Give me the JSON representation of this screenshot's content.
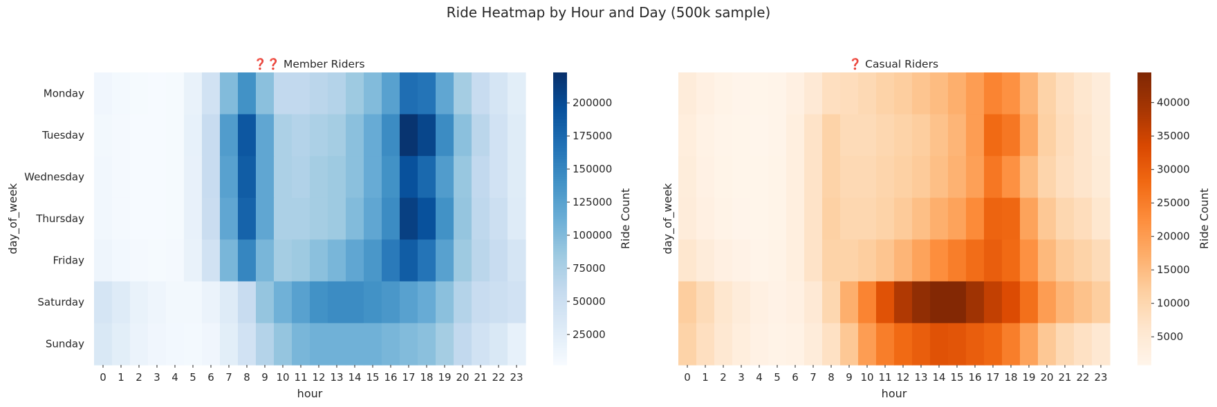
{
  "figure": {
    "title": "Ride Heatmap by Hour and Day (500k sample)"
  },
  "chart_data": [
    {
      "type": "heatmap",
      "title": "❓❓ Member Riders",
      "xlabel": "hour",
      "ylabel": "day_of_week",
      "x": [
        "0",
        "1",
        "2",
        "3",
        "4",
        "5",
        "6",
        "7",
        "8",
        "9",
        "10",
        "11",
        "12",
        "13",
        "14",
        "15",
        "16",
        "17",
        "18",
        "19",
        "20",
        "21",
        "22",
        "23"
      ],
      "y": [
        "Monday",
        "Tuesday",
        "Wednesday",
        "Thursday",
        "Friday",
        "Saturday",
        "Sunday"
      ],
      "colormap": "Blues",
      "colors": {
        "low": "#f7fbff",
        "high": "#08306b"
      },
      "colorbar": {
        "label": "Ride Count",
        "min": 2000,
        "max": 223000,
        "ticks": [
          25000,
          50000,
          75000,
          100000,
          125000,
          150000,
          175000,
          200000
        ]
      },
      "values": [
        [
          10000,
          6000,
          4000,
          3000,
          4000,
          18000,
          45000,
          100000,
          140000,
          95000,
          60000,
          60000,
          65000,
          70000,
          85000,
          100000,
          125000,
          170000,
          165000,
          120000,
          80000,
          55000,
          40000,
          25000
        ],
        [
          8000,
          5000,
          3000,
          3000,
          4000,
          20000,
          55000,
          130000,
          190000,
          120000,
          75000,
          70000,
          75000,
          80000,
          95000,
          115000,
          145000,
          220000,
          205000,
          145000,
          95000,
          65000,
          45000,
          28000
        ],
        [
          9000,
          5000,
          3000,
          3000,
          4000,
          19000,
          55000,
          125000,
          185000,
          120000,
          75000,
          72000,
          80000,
          85000,
          95000,
          115000,
          140000,
          195000,
          175000,
          130000,
          88000,
          60000,
          45000,
          28000
        ],
        [
          9000,
          5000,
          3000,
          3000,
          4000,
          19000,
          53000,
          120000,
          180000,
          120000,
          75000,
          75000,
          80000,
          85000,
          100000,
          120000,
          145000,
          210000,
          195000,
          140000,
          90000,
          62000,
          50000,
          30000
        ],
        [
          12000,
          7000,
          5000,
          4000,
          5000,
          18000,
          45000,
          105000,
          150000,
          105000,
          80000,
          85000,
          95000,
          105000,
          120000,
          135000,
          160000,
          185000,
          165000,
          125000,
          85000,
          65000,
          55000,
          40000
        ],
        [
          40000,
          30000,
          18000,
          12000,
          8000,
          8000,
          15000,
          30000,
          55000,
          90000,
          110000,
          125000,
          140000,
          145000,
          145000,
          140000,
          135000,
          125000,
          115000,
          95000,
          70000,
          55000,
          50000,
          45000
        ],
        [
          35000,
          25000,
          15000,
          10000,
          7000,
          6000,
          10000,
          25000,
          45000,
          70000,
          90000,
          105000,
          110000,
          110000,
          110000,
          110000,
          105000,
          100000,
          95000,
          80000,
          60000,
          45000,
          35000,
          20000
        ]
      ]
    },
    {
      "type": "heatmap",
      "title": "❓ Casual Riders",
      "xlabel": "hour",
      "ylabel": "day_of_week",
      "x": [
        "0",
        "1",
        "2",
        "3",
        "4",
        "5",
        "6",
        "7",
        "8",
        "9",
        "10",
        "11",
        "12",
        "13",
        "14",
        "15",
        "16",
        "17",
        "18",
        "19",
        "20",
        "21",
        "22",
        "23"
      ],
      "y": [
        "Monday",
        "Tuesday",
        "Wednesday",
        "Thursday",
        "Friday",
        "Saturday",
        "Sunday"
      ],
      "colormap": "Oranges",
      "colors": {
        "low": "#fff5eb",
        "high": "#7f2704"
      },
      "colorbar": {
        "label": "Ride Count",
        "min": 800,
        "max": 44500,
        "ticks": [
          5000,
          10000,
          15000,
          20000,
          25000,
          30000,
          35000,
          40000
        ]
      },
      "values": [
        [
          4000,
          2500,
          1500,
          1000,
          900,
          1200,
          2500,
          5000,
          8000,
          8500,
          9500,
          11000,
          12000,
          13500,
          15000,
          17000,
          20000,
          24000,
          22000,
          16000,
          11000,
          8000,
          6000,
          4000
        ],
        [
          3500,
          2000,
          1200,
          900,
          800,
          1200,
          3000,
          7000,
          11000,
          9000,
          9000,
          10000,
          11000,
          12000,
          14000,
          16000,
          20000,
          28000,
          26000,
          18000,
          11500,
          8500,
          6500,
          4200
        ],
        [
          3800,
          2200,
          1300,
          900,
          900,
          1300,
          3000,
          7000,
          11000,
          9500,
          9500,
          10500,
          11500,
          12500,
          14500,
          16500,
          19500,
          26000,
          22000,
          15000,
          10500,
          8000,
          6500,
          4500
        ],
        [
          4000,
          2500,
          1500,
          1000,
          900,
          1300,
          3000,
          7000,
          11500,
          10000,
          10000,
          11000,
          12500,
          14500,
          17000,
          19000,
          23000,
          29000,
          28500,
          19000,
          13000,
          10000,
          8500,
          6000
        ],
        [
          6000,
          4000,
          2500,
          1800,
          1200,
          1500,
          3000,
          7000,
          11000,
          11000,
          12000,
          13500,
          16000,
          19000,
          22500,
          25000,
          27500,
          30000,
          28000,
          22000,
          15500,
          12500,
          11000,
          9000
        ],
        [
          12000,
          9000,
          6000,
          4000,
          2500,
          1800,
          2500,
          5000,
          10000,
          17000,
          24000,
          32000,
          38000,
          42000,
          44000,
          44000,
          40000,
          36000,
          33000,
          27000,
          20000,
          16000,
          14000,
          12000
        ],
        [
          11000,
          8000,
          5500,
          3500,
          2200,
          1500,
          2000,
          4000,
          7500,
          13000,
          20000,
          25000,
          28000,
          30000,
          32000,
          31500,
          30000,
          28500,
          25000,
          19000,
          13000,
          9500,
          7500,
          5500
        ]
      ]
    }
  ]
}
